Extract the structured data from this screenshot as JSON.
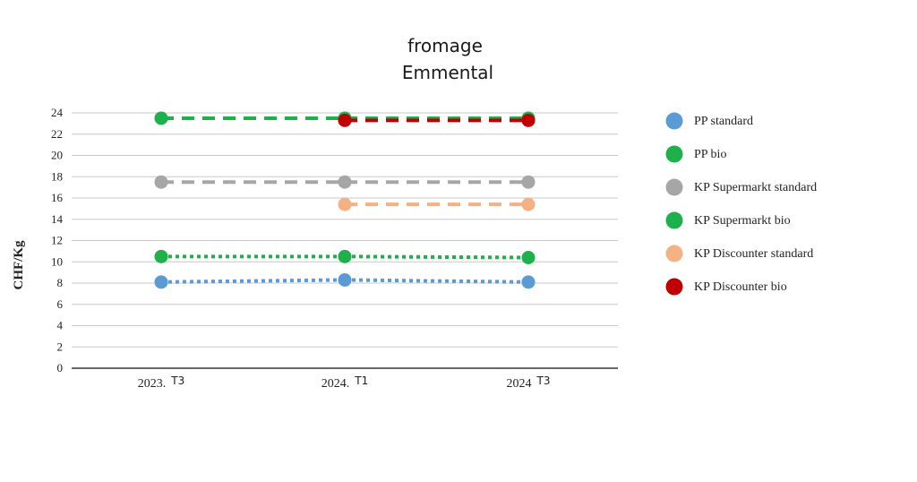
{
  "chart_data": {
    "type": "line",
    "title": "fromage",
    "subtitle": "Emmental",
    "ylabel": "CHF/Kg",
    "xlabel": "",
    "ylim": [
      0,
      24
    ],
    "yticks": [
      "0",
      "2",
      "4",
      "6",
      "8",
      "10",
      "12",
      "14",
      "16",
      "18",
      "20",
      "22",
      "24"
    ],
    "grid": true,
    "legend_position": "right",
    "categories": [
      {
        "label": "2023.",
        "suffix": "T3"
      },
      {
        "label": "2024.",
        "suffix": "T1"
      },
      {
        "label": "2024",
        "suffix": "T3"
      }
    ],
    "series": [
      {
        "name": "PP standard",
        "color": "#5b9bd5",
        "line_style": "dotted",
        "values": [
          8.1,
          8.3,
          8.1
        ]
      },
      {
        "name": "PP bio",
        "color": "#1eb14b",
        "line_style": "dotted",
        "values": [
          10.5,
          10.5,
          10.4
        ]
      },
      {
        "name": "KP Supermarkt standard",
        "color": "#a6a6a6",
        "line_style": "dashed",
        "values": [
          17.5,
          17.5,
          17.5
        ]
      },
      {
        "name": "KP Supermarkt bio",
        "color": "#1eb14b",
        "line_style": "dashed",
        "values": [
          23.5,
          23.5,
          23.5
        ]
      },
      {
        "name": "KP Discounter standard",
        "color": "#f4b183",
        "line_style": "dashed",
        "values": [
          null,
          15.4,
          15.4
        ]
      },
      {
        "name": "KP Discounter bio",
        "color": "#c00000",
        "line_style": "dashed",
        "values": [
          null,
          23.3,
          23.3
        ]
      }
    ]
  }
}
